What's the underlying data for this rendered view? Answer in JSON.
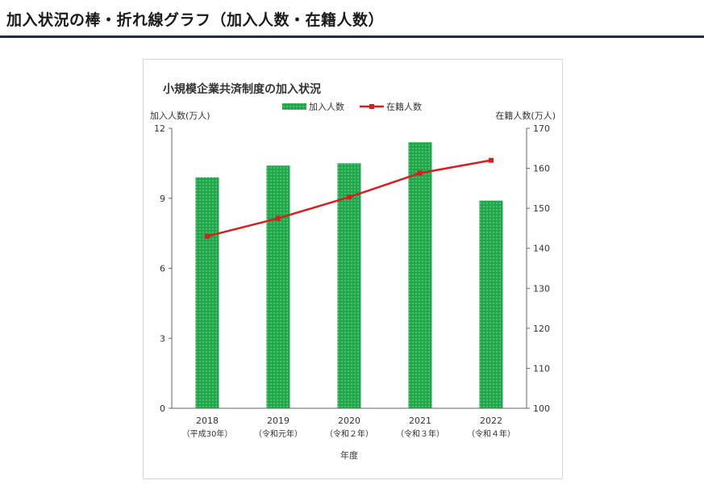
{
  "page": {
    "heading": "加入状況の棒・折れ線グラフ（加入人数・在籍人数）"
  },
  "chart_data": {
    "type": "bar+line",
    "title": "小規模企業共済制度の加入状況",
    "categories": [
      "2018",
      "2019",
      "2020",
      "2021",
      "2022"
    ],
    "category_sublabels": [
      "（平成30年）",
      "（令和元年）",
      "（令和２年）",
      "（令和３年）",
      "（令和４年）"
    ],
    "xlabel": "年度",
    "y_left": {
      "label": "加入人数(万人)",
      "range": [
        0,
        12
      ],
      "ticks": [
        "0",
        "3",
        "6",
        "9",
        "12"
      ]
    },
    "y_right": {
      "label": "在籍人数(万人)",
      "range": [
        100,
        170
      ],
      "ticks": [
        "100",
        "110",
        "120",
        "130",
        "140",
        "150",
        "160",
        "170"
      ]
    },
    "series": [
      {
        "name": "加入人数",
        "type": "bar",
        "axis": "left",
        "color": "#1ea84a",
        "values": [
          9.9,
          10.4,
          10.5,
          11.4,
          8.9
        ]
      },
      {
        "name": "在籍人数",
        "type": "line",
        "axis": "right",
        "color": "#d61f1f",
        "values": [
          143.0,
          147.5,
          152.8,
          158.8,
          162.0
        ]
      }
    ],
    "legend": {
      "position": "top",
      "labels": [
        "加入人数",
        "在籍人数"
      ]
    }
  }
}
